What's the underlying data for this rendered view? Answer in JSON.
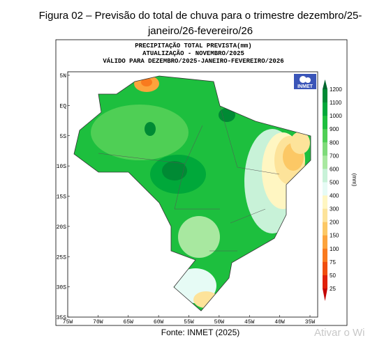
{
  "caption": {
    "lines": [
      "Figura 02 – Previsão do total de chuva para o trimestre dezembro/25-",
      "janeiro/26-fevereiro/26"
    ]
  },
  "map": {
    "title_lines": [
      "PRECIPITAÇÃO TOTAL PREVISTA(mm)",
      "ATUALIZAÇÃO - NOVEMBRO/2025",
      "VÁLIDO PARA DEZEMBRO/2025-JANEIRO-FEVEREIRO/2026"
    ],
    "logo": "INMET",
    "lat_labels": [
      "5N",
      "EQ",
      "5S",
      "10S",
      "15S",
      "20S",
      "25S",
      "30S",
      "35S"
    ],
    "lon_labels": [
      "75W",
      "70W",
      "65W",
      "60W",
      "55W",
      "50W",
      "45W",
      "40W",
      "35W"
    ]
  },
  "legend": {
    "unit": "(mm)",
    "levels": [
      1200,
      1100,
      1000,
      900,
      800,
      700,
      600,
      500,
      400,
      300,
      200,
      150,
      100,
      75,
      50,
      25
    ],
    "colors": [
      "#00662e",
      "#008a34",
      "#00a83a",
      "#1dbf3e",
      "#4fcf55",
      "#7fdb7a",
      "#a8e8a0",
      "#c8f2d8",
      "#e6fbf5",
      "#fff6c2",
      "#fde39a",
      "#fcc865",
      "#fca33c",
      "#f97a1e",
      "#f04e0f",
      "#e0200a",
      "#c40505"
    ]
  },
  "source": "Fonte: INMET (2025)",
  "watermark": "Ativar o Wi"
}
